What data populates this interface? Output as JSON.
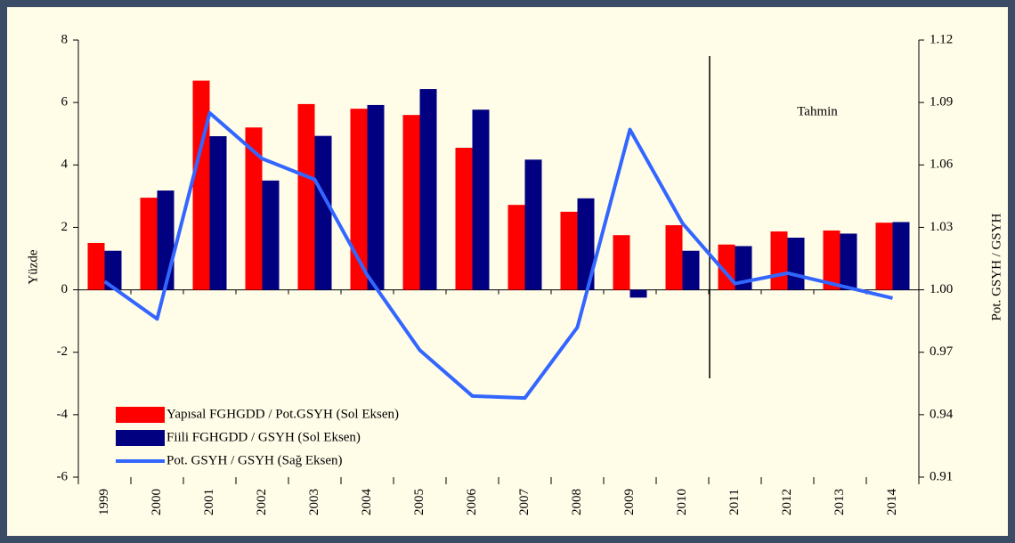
{
  "chart_data": {
    "type": "bar",
    "categories": [
      "1999",
      "2000",
      "2001",
      "2002",
      "2003",
      "2004",
      "2005",
      "2006",
      "2007",
      "2008",
      "2009",
      "2010",
      "2011",
      "2012",
      "2013",
      "2014"
    ],
    "series": [
      {
        "name": "Yapısal FGHGDD / Pot.GSYH (Sol Eksen)",
        "type": "bar",
        "color": "#ff0000",
        "values": [
          1.5,
          2.95,
          6.7,
          5.2,
          5.95,
          5.8,
          5.6,
          4.55,
          2.72,
          2.5,
          1.75,
          2.07,
          1.45,
          1.87,
          1.9,
          2.15
        ]
      },
      {
        "name": "Fiili FGHGDD / GSYH (Sol Eksen)",
        "type": "bar",
        "color": "#000080",
        "values": [
          1.25,
          3.18,
          4.92,
          3.5,
          4.93,
          5.92,
          6.43,
          5.77,
          4.17,
          2.93,
          -0.25,
          1.25,
          1.4,
          1.67,
          1.8,
          2.17
        ]
      },
      {
        "name": "Pot. GSYH / GSYH (Sağ Eksen)",
        "type": "line",
        "axis": "y2",
        "color": "#3366ff",
        "values": [
          1.004,
          0.986,
          1.085,
          1.063,
          1.053,
          1.007,
          0.971,
          0.949,
          0.948,
          0.982,
          1.077,
          1.032,
          1.003,
          1.008,
          1.002,
          0.996
        ]
      }
    ],
    "ylabel": "Yüzde",
    "y2label": "Pot. GSYH / GSYH",
    "annotation": "Tahmin",
    "ylim": [
      -6,
      8
    ],
    "yticks": [
      -6,
      -4,
      -2,
      0,
      2,
      4,
      6,
      8
    ],
    "y2lim": [
      0.91,
      1.12
    ],
    "y2ticks": [
      0.91,
      0.94,
      0.97,
      {
        "value": 1,
        "label": "1.00"
      },
      1.03,
      1.06,
      1.09,
      1.12
    ],
    "legend": "lower left"
  }
}
